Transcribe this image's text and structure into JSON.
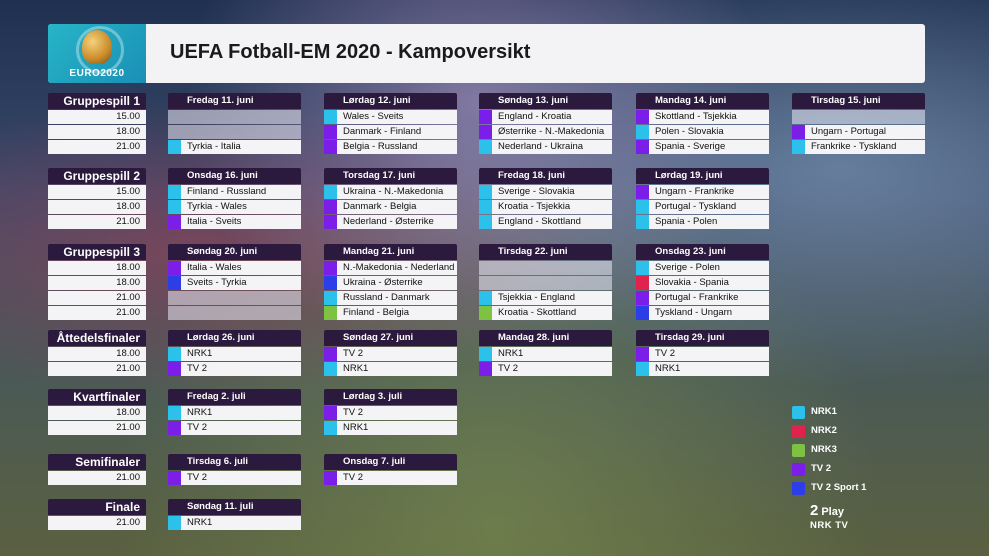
{
  "header": {
    "title": "UEFA Fotball-EM 2020 - Kampoversikt",
    "logo_text": "EURO2020"
  },
  "colors": {
    "NRK1": "#2bc1ea",
    "NRK2": "#e0234d",
    "NRK3": "#7dc242",
    "TV 2": "#7b1fe8",
    "TV 2 Sport 1": "#2b3ee8"
  },
  "legend": [
    {
      "label": "NRK1",
      "channel": "NRK1"
    },
    {
      "label": "NRK2",
      "channel": "NRK2"
    },
    {
      "label": "NRK3",
      "channel": "NRK3"
    },
    {
      "label": "TV 2",
      "channel": "TV 2"
    },
    {
      "label": "TV 2 Sport 1",
      "channel": "TV 2 Sport 1"
    }
  ],
  "footer": {
    "tv2play": "Play",
    "tv2play_mark": "2",
    "nrktv": "NRK TV"
  },
  "sections": [
    {
      "label": "Gruppespill 1",
      "times": [
        "15.00",
        "18.00",
        "21.00"
      ],
      "days": [
        {
          "date": "Fredag 11. juni",
          "matches": [
            null,
            null,
            {
              "text": "Tyrkia - Italia",
              "ch": "NRK1"
            }
          ]
        },
        {
          "date": "Lørdag 12. juni",
          "matches": [
            {
              "text": "Wales - Sveits",
              "ch": "NRK1"
            },
            {
              "text": "Danmark - Finland",
              "ch": "TV 2"
            },
            {
              "text": "Belgia - Russland",
              "ch": "TV 2"
            }
          ]
        },
        {
          "date": "Søndag 13. juni",
          "matches": [
            {
              "text": "England - Kroatia",
              "ch": "TV 2"
            },
            {
              "text": "Østerrike - N.-Makedonia",
              "ch": "TV 2"
            },
            {
              "text": "Nederland - Ukraina",
              "ch": "NRK1"
            }
          ]
        },
        {
          "date": "Mandag 14. juni",
          "matches": [
            {
              "text": "Skottland - Tsjekkia",
              "ch": "TV 2"
            },
            {
              "text": "Polen - Slovakia",
              "ch": "NRK1"
            },
            {
              "text": "Spania - Sverige",
              "ch": "TV 2"
            }
          ]
        },
        {
          "date": "Tirsdag 15. juni",
          "matches": [
            null,
            {
              "text": "Ungarn - Portugal",
              "ch": "TV 2"
            },
            {
              "text": "Frankrike - Tyskland",
              "ch": "NRK1"
            }
          ]
        }
      ]
    },
    {
      "label": "Gruppespill 2",
      "times": [
        "15.00",
        "18.00",
        "21.00"
      ],
      "days": [
        {
          "date": "Onsdag 16. juni",
          "matches": [
            {
              "text": "Finland - Russland",
              "ch": "NRK1"
            },
            {
              "text": "Tyrkia - Wales",
              "ch": "NRK1"
            },
            {
              "text": "Italia - Sveits",
              "ch": "TV 2"
            }
          ]
        },
        {
          "date": "Torsdag 17. juni",
          "matches": [
            {
              "text": "Ukraina - N.-Makedonia",
              "ch": "NRK1"
            },
            {
              "text": "Danmark - Belgia",
              "ch": "TV 2"
            },
            {
              "text": "Nederland - Østerrike",
              "ch": "TV 2"
            }
          ]
        },
        {
          "date": "Fredag 18. juni",
          "matches": [
            {
              "text": "Sverige - Slovakia",
              "ch": "NRK1"
            },
            {
              "text": "Kroatia - Tsjekkia",
              "ch": "NRK1"
            },
            {
              "text": "England - Skottland",
              "ch": "NRK1"
            }
          ]
        },
        {
          "date": "Lørdag 19. juni",
          "matches": [
            {
              "text": "Ungarn - Frankrike",
              "ch": "TV 2"
            },
            {
              "text": "Portugal - Tyskland",
              "ch": "NRK1"
            },
            {
              "text": "Spania - Polen",
              "ch": "NRK1"
            }
          ]
        }
      ]
    },
    {
      "label": "Gruppespill 3",
      "times": [
        "18.00",
        "18.00",
        "21.00",
        "21.00"
      ],
      "days": [
        {
          "date": "Søndag 20. juni",
          "matches": [
            {
              "text": "Italia - Wales",
              "ch": "TV 2"
            },
            {
              "text": "Sveits - Tyrkia",
              "ch": "TV 2 Sport 1"
            },
            null,
            null
          ]
        },
        {
          "date": "Mandag 21. juni",
          "matches": [
            {
              "text": "N.-Makedonia - Nederland",
              "ch": "TV 2"
            },
            {
              "text": "Ukraina - Østerrike",
              "ch": "TV 2 Sport 1"
            },
            {
              "text": "Russland - Danmark",
              "ch": "NRK1"
            },
            {
              "text": "Finland - Belgia",
              "ch": "NRK3"
            }
          ]
        },
        {
          "date": "Tirsdag 22. juni",
          "matches": [
            null,
            null,
            {
              "text": "Tsjekkia - England",
              "ch": "NRK1"
            },
            {
              "text": "Kroatia - Skottland",
              "ch": "NRK3"
            }
          ]
        },
        {
          "date": "Onsdag 23. juni",
          "matches": [
            {
              "text": "Sverige - Polen",
              "ch": "NRK1"
            },
            {
              "text": "Slovakia - Spania",
              "ch": "NRK2"
            },
            {
              "text": "Portugal - Frankrike",
              "ch": "TV 2"
            },
            {
              "text": "Tyskland - Ungarn",
              "ch": "TV 2 Sport 1"
            }
          ]
        }
      ]
    },
    {
      "label": "Åttedelsfinaler",
      "times": [
        "18.00",
        "21.00"
      ],
      "days": [
        {
          "date": "Lørdag 26. juni",
          "matches": [
            {
              "text": "NRK1",
              "ch": "NRK1"
            },
            {
              "text": "TV 2",
              "ch": "TV 2"
            }
          ]
        },
        {
          "date": "Søndag 27. juni",
          "matches": [
            {
              "text": "TV 2",
              "ch": "TV 2"
            },
            {
              "text": "NRK1",
              "ch": "NRK1"
            }
          ]
        },
        {
          "date": "Mandag 28. juni",
          "matches": [
            {
              "text": "NRK1",
              "ch": "NRK1"
            },
            {
              "text": "TV 2",
              "ch": "TV 2"
            }
          ]
        },
        {
          "date": "Tirsdag 29. juni",
          "matches": [
            {
              "text": "TV 2",
              "ch": "TV 2"
            },
            {
              "text": "NRK1",
              "ch": "NRK1"
            }
          ]
        }
      ]
    },
    {
      "label": "Kvartfinaler",
      "times": [
        "18.00",
        "21.00"
      ],
      "days": [
        {
          "date": "Fredag 2. juli",
          "matches": [
            {
              "text": "NRK1",
              "ch": "NRK1"
            },
            {
              "text": "TV 2",
              "ch": "TV 2"
            }
          ]
        },
        {
          "date": "Lørdag 3. juli",
          "matches": [
            {
              "text": "TV 2",
              "ch": "TV 2"
            },
            {
              "text": "NRK1",
              "ch": "NRK1"
            }
          ]
        }
      ]
    },
    {
      "label": "Semifinaler",
      "times": [
        "21.00"
      ],
      "days": [
        {
          "date": "Tirsdag 6. juli",
          "matches": [
            {
              "text": "TV 2",
              "ch": "TV 2"
            }
          ]
        },
        {
          "date": "Onsdag 7. juli",
          "matches": [
            {
              "text": "TV 2",
              "ch": "TV 2"
            }
          ]
        }
      ]
    },
    {
      "label": "Finale",
      "times": [
        "21.00"
      ],
      "days": [
        {
          "date": "Søndag 11. juli",
          "matches": [
            {
              "text": "NRK1",
              "ch": "NRK1"
            }
          ]
        }
      ]
    }
  ]
}
